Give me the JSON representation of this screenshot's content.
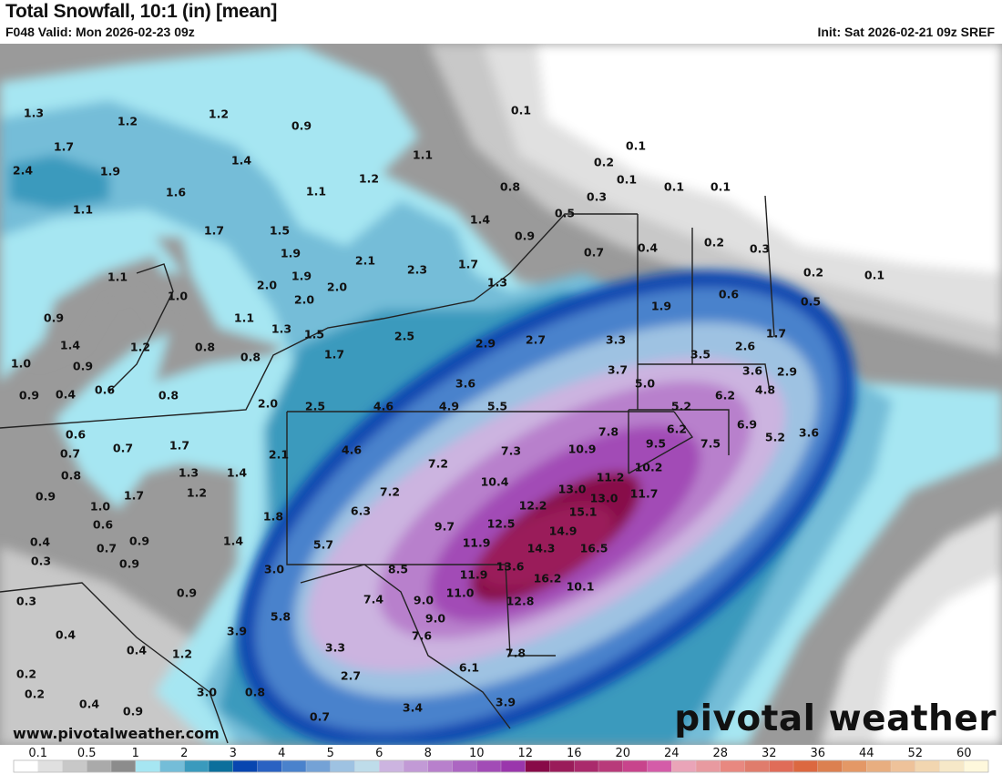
{
  "header": {
    "title": "Total Snowfall, 10:1 (in) [mean]",
    "valid": "F048 Valid: Mon 2026-02-23 09z",
    "init": "Init: Sat 2026-02-21 09z SREF"
  },
  "footer": {
    "url": "www.pivotalweather.com",
    "logo": "pivotal weather"
  },
  "colorbar": {
    "labels": [
      "0.1",
      "0.5",
      "1",
      "2",
      "3",
      "4",
      "5",
      "6",
      "8",
      "10",
      "12",
      "16",
      "20",
      "24",
      "28",
      "32",
      "36",
      "44",
      "52",
      "60"
    ],
    "colors": [
      "#ffffff",
      "#e0e0e0",
      "#c8c8c8",
      "#aaaaaa",
      "#8c8c8c",
      "#a6e6f2",
      "#74bdd8",
      "#3a9abd",
      "#0c6f9c",
      "#0846b0",
      "#2a62c2",
      "#4a82cc",
      "#74a2d6",
      "#9ec2e2",
      "#bedcea",
      "#ccb4e0",
      "#c29ad6",
      "#b880cc",
      "#ac66c2",
      "#a24cb6",
      "#9a36ac",
      "#880a48",
      "#9a1c5a",
      "#aa2a6c",
      "#b83a7a",
      "#c8448c",
      "#d45ca8",
      "#eaa4b8",
      "#e89aa0",
      "#e88880",
      "#e07c6c",
      "#e06c58",
      "#dc6840",
      "#dc8050",
      "#e49866",
      "#e8ae80",
      "#eec29a",
      "#f2d6b0",
      "#f6e8c8",
      "#fef8dc"
    ]
  },
  "map": {
    "point_values": [
      "1.3",
      "1.2",
      "1.2",
      "0.9",
      "1.7",
      "1.4",
      "2.4",
      "1.9",
      "1.6",
      "1.1",
      "1.1",
      "1.7",
      "1.5",
      "1.9",
      "1.9",
      "2.0",
      "2.0",
      "2.0",
      "1.1",
      "1.0",
      "1.1",
      "1.3",
      "1.5",
      "0.9",
      "1.4",
      "1.2",
      "0.8",
      "0.8",
      "1.0",
      "0.9",
      "0.9",
      "0.4",
      "0.6",
      "0.8",
      "2.0",
      "2.5",
      "0.6",
      "0.7",
      "0.7",
      "1.7",
      "0.8",
      "1.3",
      "1.4",
      "1.2",
      "0.9",
      "1.7",
      "1.0",
      "0.6",
      "0.4",
      "0.7",
      "0.9",
      "0.3",
      "0.9",
      "2.1",
      "1.8",
      "1.4",
      "5.7",
      "3.0",
      "0.9",
      "0.3",
      "0.4",
      "5.8",
      "3.9",
      "0.4",
      "1.2",
      "0.2",
      "0.2",
      "0.4",
      "0.9",
      "3.0",
      "0.8",
      "0.7",
      "1.7",
      "2.5",
      "2.9",
      "2.7",
      "3.3",
      "3.7",
      "5.0",
      "3.6",
      "4.6",
      "4.9",
      "5.5",
      "4.6",
      "7.8",
      "10.9",
      "9.5",
      "7.3",
      "7.2",
      "10.2",
      "11.2",
      "10.4",
      "7.2",
      "13.0",
      "13.0",
      "11.7",
      "12.2",
      "6.3",
      "15.1",
      "12.5",
      "9.7",
      "14.9",
      "11.9",
      "14.3",
      "16.5",
      "13.6",
      "8.5",
      "11.9",
      "16.2",
      "10.1",
      "11.0",
      "12.8",
      "7.4",
      "9.0",
      "9.0",
      "7.6",
      "3.3",
      "7.8",
      "2.7",
      "6.1",
      "3.4",
      "3.9",
      "1.7",
      "3.5",
      "2.6",
      "3.6",
      "2.9",
      "4.8",
      "6.2",
      "5.2",
      "6.9",
      "6.2",
      "7.5",
      "5.2",
      "3.6",
      "0.1",
      "0.1",
      "1.1",
      "0.2",
      "1.2",
      "0.1",
      "0.8",
      "0.1",
      "0.1",
      "0.3",
      "0.5",
      "1.4",
      "0.9",
      "2.1",
      "2.3",
      "1.7",
      "0.7",
      "0.4",
      "0.2",
      "0.3",
      "1.3",
      "1.9",
      "0.6",
      "0.2",
      "0.1",
      "0.5"
    ]
  }
}
